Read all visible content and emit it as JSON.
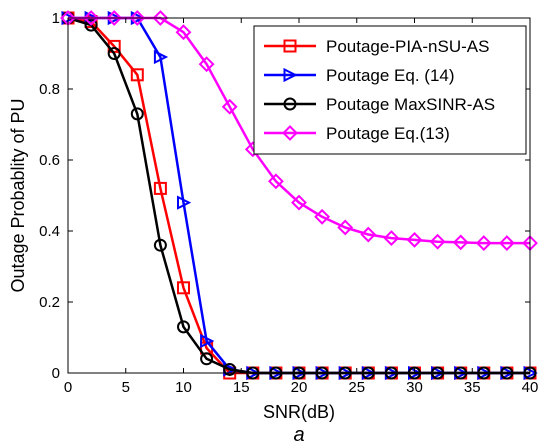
{
  "chart_data": {
    "type": "line",
    "title": "",
    "xlabel": "SNR(dB)",
    "ylabel": "Outage Probablity of PU",
    "caption": "a",
    "xlim": [
      0,
      40
    ],
    "ylim": [
      0,
      1
    ],
    "xticks": [
      0,
      5,
      10,
      15,
      20,
      25,
      30,
      35,
      40
    ],
    "yticks": [
      0,
      0.2,
      0.4,
      0.6,
      0.8,
      1
    ],
    "xtick_labels": [
      "0",
      "5",
      "10",
      "15",
      "20",
      "25",
      "30",
      "35",
      "40"
    ],
    "ytick_labels": [
      "0",
      "0.2",
      "0.4",
      "0.6",
      "0.8",
      "1"
    ],
    "grid": false,
    "legend_position": "top-right",
    "x": [
      0,
      2,
      4,
      6,
      8,
      10,
      12,
      14,
      16,
      18,
      20,
      22,
      24,
      26,
      28,
      30,
      32,
      34,
      36,
      38,
      40
    ],
    "series": [
      {
        "name": "Poutage-PIA-nSU-AS",
        "color": "#ff0000",
        "marker": "square",
        "values": [
          1.0,
          0.99,
          0.92,
          0.84,
          0.52,
          0.24,
          0.07,
          0.0,
          0.0,
          0.0,
          0.0,
          0.0,
          0.0,
          0.0,
          0.0,
          0.0,
          0.0,
          0.0,
          0.0,
          0.0,
          0.0
        ]
      },
      {
        "name": "Poutage Eq. (14)",
        "color": "#0000ff",
        "marker": "triangle-right",
        "values": [
          1.0,
          1.0,
          1.0,
          1.0,
          0.89,
          0.48,
          0.09,
          0.01,
          0.0,
          0.0,
          0.0,
          0.0,
          0.0,
          0.0,
          0.0,
          0.0,
          0.0,
          0.0,
          0.0,
          0.0,
          0.0
        ]
      },
      {
        "name": "Poutage MaxSINR-AS",
        "color": "#000000",
        "marker": "circle",
        "values": [
          1.0,
          0.98,
          0.9,
          0.73,
          0.36,
          0.13,
          0.04,
          0.01,
          0.0,
          0.0,
          0.0,
          0.0,
          0.0,
          0.0,
          0.0,
          0.0,
          0.0,
          0.0,
          0.0,
          0.0,
          0.0
        ]
      },
      {
        "name": "Poutage Eq.(13)",
        "color": "#ff00ff",
        "marker": "diamond",
        "values": [
          1.0,
          1.0,
          1.0,
          1.0,
          1.0,
          0.96,
          0.87,
          0.75,
          0.63,
          0.54,
          0.48,
          0.44,
          0.41,
          0.39,
          0.38,
          0.375,
          0.37,
          0.368,
          0.366,
          0.366,
          0.366
        ]
      }
    ]
  }
}
